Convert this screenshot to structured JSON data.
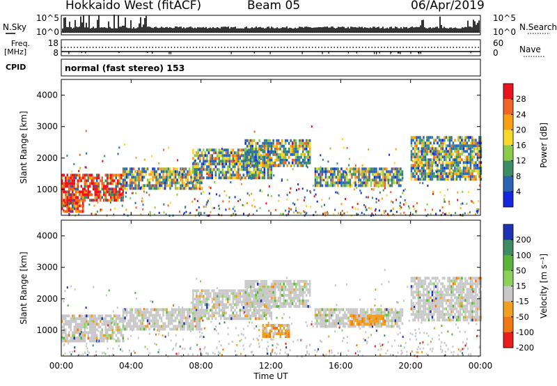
{
  "header": {
    "station": "Hokkaido West (fitACF)",
    "beam": "Beam 05",
    "date": "06/Apr/2019"
  },
  "top_panels": {
    "nsky_label": "N.Sky",
    "nsearch_label": "N.Search",
    "noise_ticks": [
      "10^5",
      "10^0"
    ],
    "freq_label_1": "Freq.",
    "freq_label_2": "[MHz]",
    "freq_ticks": [
      "18",
      "8"
    ],
    "nave_label": "Nave",
    "nave_ticks": [
      "60",
      "0"
    ],
    "cpid_label": "CPID",
    "cpid_text": "normal (fast stereo) 153"
  },
  "chart_data": [
    {
      "type": "heatmap",
      "title": "Power",
      "parameter": "power",
      "xlabel": "",
      "ylabel": "Slant Range [km]",
      "xlim": [
        0,
        24
      ],
      "ylim": [
        180,
        4500
      ],
      "x_tick_values": [
        0,
        4,
        8,
        12,
        16,
        20,
        24
      ],
      "y_tick_values": [
        1000,
        2000,
        3000,
        4000
      ],
      "y_tick_labels": [
        "1000",
        "2000",
        "3000",
        "4000"
      ],
      "colorbar_label": "Power [dB]",
      "colorbar_ticks": [
        "28",
        "24",
        "20",
        "16",
        "12",
        "8",
        "4"
      ],
      "colorbar_colors": [
        "#e8141e",
        "#f06428",
        "#f8a014",
        "#f8d82c",
        "#8ccc4c",
        "#3c8c64",
        "#2c64b4",
        "#1428dc"
      ],
      "bands": [
        {
          "x_start": 0.0,
          "x_end": 3.5,
          "range_low": 700,
          "range_high": 1500,
          "level": "high"
        },
        {
          "x_start": 0.0,
          "x_end": 1.2,
          "range_low": 280,
          "range_high": 700,
          "level": "high"
        },
        {
          "x_start": 3.5,
          "x_end": 8.0,
          "range_low": 1000,
          "range_high": 1700,
          "level": "mid"
        },
        {
          "x_start": 7.5,
          "x_end": 12.0,
          "range_low": 1400,
          "range_high": 2300,
          "level": "mid"
        },
        {
          "x_start": 10.5,
          "x_end": 14.2,
          "range_low": 1800,
          "range_high": 2600,
          "level": "mid"
        },
        {
          "x_start": 14.5,
          "x_end": 19.5,
          "range_low": 1150,
          "range_high": 1700,
          "level": "mid"
        },
        {
          "x_start": 20.0,
          "x_end": 24.0,
          "range_low": 1300,
          "range_high": 2700,
          "level": "mid"
        }
      ]
    },
    {
      "type": "heatmap",
      "title": "Velocity",
      "parameter": "velocity",
      "xlabel": "Time UT",
      "ylabel": "Slant Range [km]",
      "xlim": [
        0,
        24
      ],
      "ylim": [
        180,
        4500
      ],
      "x_tick_values": [
        0,
        4,
        8,
        12,
        16,
        20,
        24
      ],
      "x_tick_labels": [
        "00:00",
        "04:00",
        "08:00",
        "12:00",
        "16:00",
        "20:00",
        "00:00"
      ],
      "y_tick_values": [
        1000,
        2000,
        3000,
        4000
      ],
      "y_tick_labels": [
        "1000",
        "2000",
        "3000",
        "4000"
      ],
      "colorbar_label": "Velocity [m s⁻¹]",
      "colorbar_ticks": [
        "200",
        "100",
        "50",
        "15",
        "-15",
        "-50",
        "-100",
        "-200"
      ],
      "colorbar_colors": [
        "#1e32b4",
        "#3c8c64",
        "#5ab43c",
        "#8cd25a",
        "#c8c8c8",
        "#f0a01e",
        "#f07814",
        "#e81e1e"
      ],
      "bands": [
        {
          "x_start": 0.0,
          "x_end": 3.5,
          "range_low": 700,
          "range_high": 1500,
          "level": "grey"
        },
        {
          "x_start": 3.5,
          "x_end": 8.0,
          "range_low": 1000,
          "range_high": 1700,
          "level": "grey"
        },
        {
          "x_start": 7.5,
          "x_end": 12.0,
          "range_low": 1400,
          "range_high": 2300,
          "level": "grey"
        },
        {
          "x_start": 10.5,
          "x_end": 14.2,
          "range_low": 1800,
          "range_high": 2600,
          "level": "grey"
        },
        {
          "x_start": 14.5,
          "x_end": 19.5,
          "range_low": 1150,
          "range_high": 1700,
          "level": "grey"
        },
        {
          "x_start": 20.0,
          "x_end": 24.0,
          "range_low": 1300,
          "range_high": 2700,
          "level": "grey"
        },
        {
          "x_start": 11.5,
          "x_end": 13.0,
          "range_low": 800,
          "range_high": 1200,
          "level": "orange"
        },
        {
          "x_start": 16.5,
          "x_end": 18.5,
          "range_low": 1200,
          "range_high": 1500,
          "level": "orange"
        }
      ]
    }
  ]
}
